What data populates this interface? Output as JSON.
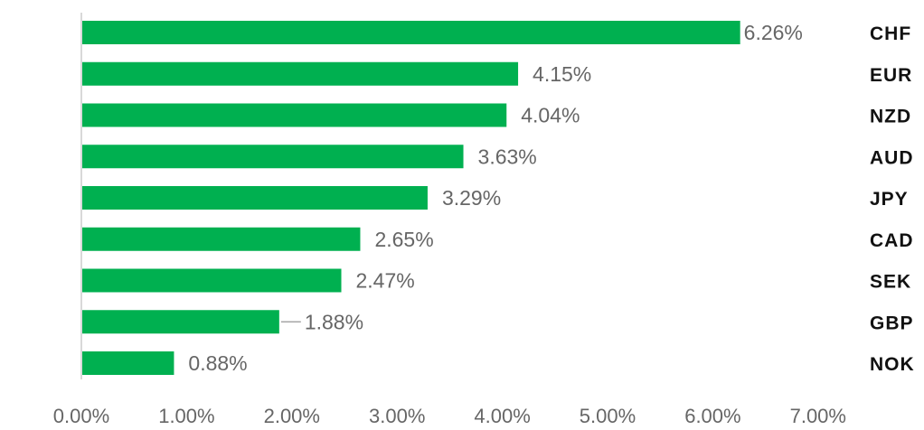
{
  "chart_data": {
    "type": "bar",
    "orientation": "horizontal",
    "categories": [
      "CHF",
      "EUR",
      "NZD",
      "AUD",
      "JPY",
      "CAD",
      "SEK",
      "GBP",
      "NOK"
    ],
    "values": [
      6.26,
      4.15,
      4.04,
      3.63,
      3.29,
      2.65,
      2.47,
      1.88,
      0.88
    ],
    "data_labels": [
      "6.26%",
      "4.15%",
      "4.04%",
      "3.63%",
      "3.29%",
      "2.65%",
      "2.47%",
      "1.88%",
      "0.88%"
    ],
    "title": "",
    "xlabel": "",
    "ylabel": "",
    "xlim": [
      0,
      7
    ],
    "x_ticks": [
      "0.00%",
      "1.00%",
      "2.00%",
      "3.00%",
      "4.00%",
      "5.00%",
      "6.00%",
      "7.00%"
    ],
    "grid": false,
    "legend": "none",
    "category_label_position": "right",
    "colors": {
      "bar": "#00b050",
      "axis": "#d9d9d9",
      "tick_text": "#666666",
      "category_text": "#111111"
    }
  }
}
